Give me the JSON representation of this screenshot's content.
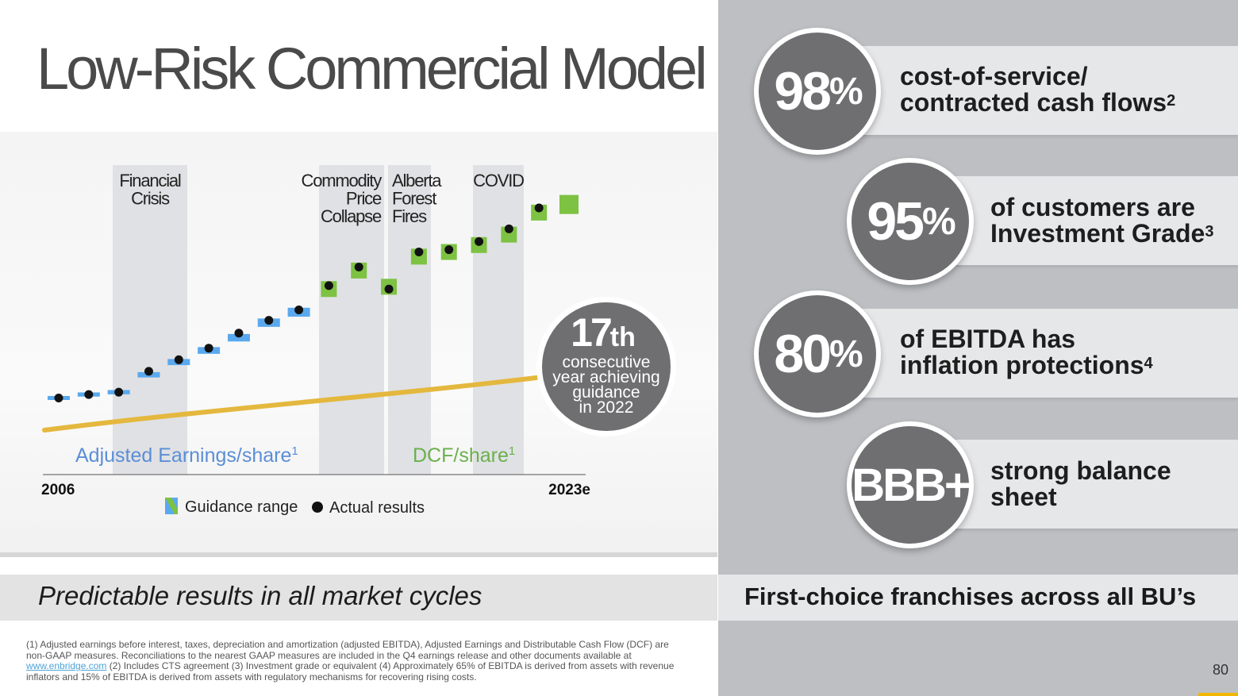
{
  "title": "Low-Risk Commercial Model",
  "left_banner": "Predictable results in all market cycles",
  "right_banner": "First-choice franchises across all BU’s",
  "page_number": "80",
  "footnote": {
    "part1": "(1) Adjusted earnings before interest, taxes, depreciation and amortization (adjusted EBITDA), Adjusted Earnings and Distributable Cash Flow (DCF) are non-GAAP measures. Reconciliations to the nearest GAAP measures are included in the Q4 earnings release and other documents available at ",
    "link": "www.enbridge.com",
    "part2": " (2) Includes CTS agreement (3) Investment grade or equivalent (4) Approximately 65% of EBITDA is derived from assets with revenue inflators and 15% of EBITDA is derived from assets with regulatory mechanisms for recovering rising costs."
  },
  "stats": [
    {
      "value": "98",
      "unit": "%",
      "line1": "cost-of-service/",
      "line2": "contracted cash flows",
      "sup": "2"
    },
    {
      "value": "95",
      "unit": "%",
      "line1": "of customers are",
      "line2": "Investment Grade",
      "sup": "3"
    },
    {
      "value": "80",
      "unit": "%",
      "line1": "of EBITDA has",
      "line2": "inflation protections",
      "sup": "4"
    },
    {
      "value": "BBB+",
      "unit": "",
      "line1": "strong balance",
      "line2": "sheet",
      "sup": ""
    }
  ],
  "badge": {
    "number": "17",
    "suffix": "th",
    "lines": [
      "consecutive",
      "year achieving",
      "guidance",
      "in 2022"
    ]
  },
  "chart_data": {
    "type": "scatter",
    "x_start_label": "2006",
    "x_end_label": "2023e",
    "series_labels": [
      {
        "name": "Adjusted Earnings/share",
        "sup": "1",
        "color": "#5b8ed6"
      },
      {
        "name": "DCF/share",
        "sup": "1",
        "color": "#6ab04c"
      }
    ],
    "legend": [
      {
        "name": "Guidance range",
        "kind": "guidance-swatch"
      },
      {
        "name": "Actual results",
        "kind": "dot"
      }
    ],
    "events": [
      {
        "label": [
          "Financial",
          "Crisis"
        ]
      },
      {
        "label": [
          "Commodity",
          "Price",
          "Collapse"
        ]
      },
      {
        "label": [
          "Alberta",
          "Forest",
          "Fires"
        ]
      },
      {
        "label": [
          "COVID"
        ]
      }
    ],
    "points": [
      {
        "year": "2006",
        "series": "earnings",
        "guidance": 1.2,
        "actual": 1.2
      },
      {
        "year": "2007",
        "series": "earnings",
        "guidance": 1.5,
        "actual": 1.5
      },
      {
        "year": "2008",
        "series": "earnings",
        "guidance": 1.7,
        "actual": 1.7
      },
      {
        "year": "2009",
        "series": "earnings",
        "guidance": 3.2,
        "actual": 3.5
      },
      {
        "year": "2010",
        "series": "earnings",
        "guidance": 4.3,
        "actual": 4.5
      },
      {
        "year": "2011",
        "series": "earnings",
        "guidance": 5.3,
        "actual": 5.5
      },
      {
        "year": "2012",
        "series": "earnings",
        "guidance": 6.4,
        "actual": 6.8
      },
      {
        "year": "2013",
        "series": "earnings",
        "guidance": 7.7,
        "actual": 7.9
      },
      {
        "year": "2014",
        "series": "earnings",
        "guidance": 8.6,
        "actual": 8.8
      },
      {
        "year": "2015",
        "series": "dcf",
        "guidance": 10.6,
        "actual": 10.9
      },
      {
        "year": "2016",
        "series": "dcf",
        "guidance": 12.2,
        "actual": 12.5
      },
      {
        "year": "2017",
        "series": "dcf",
        "guidance": 10.8,
        "actual": 10.6
      },
      {
        "year": "2018",
        "series": "dcf",
        "guidance": 13.4,
        "actual": 13.8
      },
      {
        "year": "2019",
        "series": "dcf",
        "guidance": 13.8,
        "actual": 14.0
      },
      {
        "year": "2020",
        "series": "dcf",
        "guidance": 14.4,
        "actual": 14.7
      },
      {
        "year": "2021",
        "series": "dcf",
        "guidance": 15.3,
        "actual": 15.8
      },
      {
        "year": "2022",
        "series": "dcf",
        "guidance": 17.2,
        "actual": 17.6
      },
      {
        "year": "2023e",
        "series": "dcf",
        "guidance": 17.9,
        "actual": null
      }
    ],
    "colors": {
      "earnings": "#5aa9ee",
      "dcf": "#7dc242",
      "dot": "#111111",
      "arrow": "#e4b83e",
      "event_band": "#e0e1e4"
    }
  }
}
